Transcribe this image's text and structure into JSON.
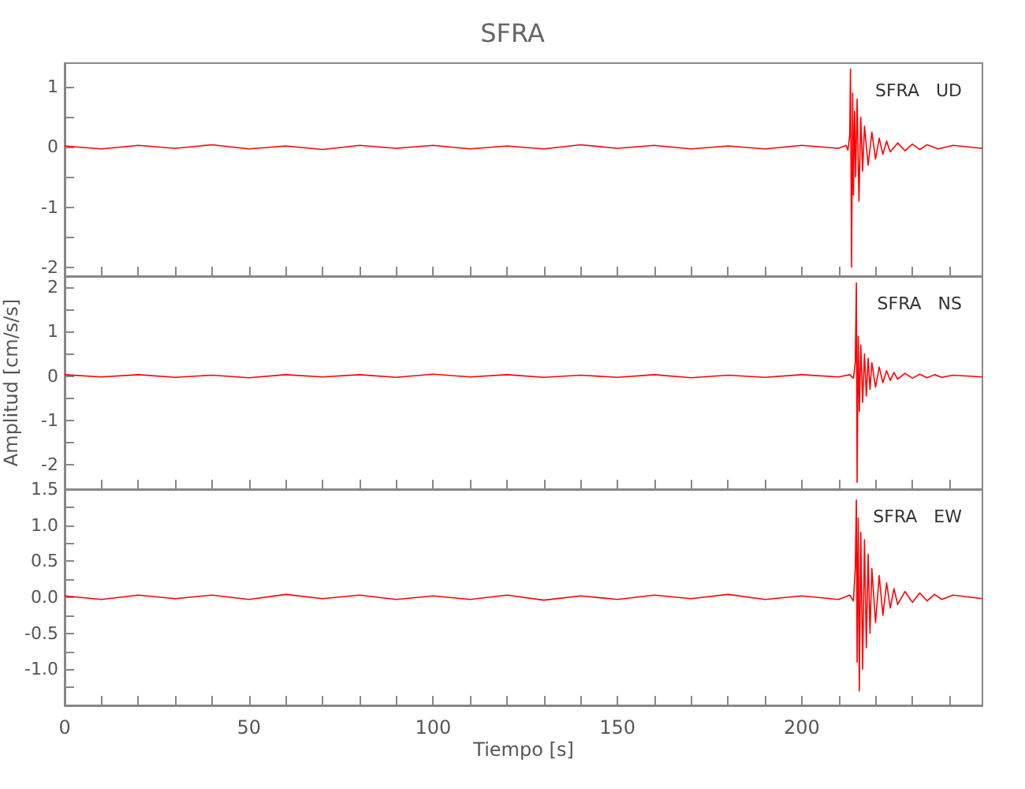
{
  "chart_data": [
    {
      "type": "line",
      "title": "SFRA",
      "annotations": [
        "SFRA   UD"
      ],
      "tick_labels": "y",
      "marker": "none",
      "x": [
        0,
        10,
        20,
        30,
        40,
        50,
        60,
        70,
        80,
        90,
        100,
        110,
        120,
        130,
        140,
        150,
        160,
        170,
        180,
        190,
        200,
        210,
        212,
        212.5,
        213,
        213.2,
        213.5,
        213.8,
        214,
        214.3,
        214.6,
        215,
        215.5,
        216,
        216.5,
        217,
        218,
        219,
        220,
        221,
        222,
        223,
        224,
        226,
        228,
        230,
        232,
        234,
        237,
        241,
        249
      ],
      "series": [
        {
          "color": "#ff0000",
          "values": [
            0.02,
            -0.03,
            0.03,
            -0.02,
            0.04,
            -0.03,
            0.02,
            -0.04,
            0.03,
            -0.02,
            0.03,
            -0.03,
            0.02,
            -0.03,
            0.04,
            -0.02,
            0.03,
            -0.03,
            0.02,
            -0.03,
            0.03,
            -0.02,
            0.03,
            -0.05,
            0.2,
            1.3,
            -2.0,
            0.9,
            -0.8,
            0.6,
            -0.5,
            0.8,
            -0.9,
            0.5,
            -0.4,
            0.35,
            -0.3,
            0.25,
            -0.2,
            0.15,
            -0.12,
            0.1,
            -0.08,
            0.07,
            -0.06,
            0.05,
            -0.04,
            0.04,
            -0.03,
            0.03,
            -0.02
          ]
        }
      ],
      "xlim": [
        0,
        249
      ],
      "xticks": [
        0,
        {
          "value": 10,
          "label": null
        },
        {
          "value": 20,
          "label": null
        },
        {
          "value": 30,
          "label": null
        },
        {
          "value": 40,
          "label": null
        },
        50,
        {
          "value": 60,
          "label": null
        },
        {
          "value": 70,
          "label": null
        },
        {
          "value": 80,
          "label": null
        },
        {
          "value": 90,
          "label": null
        },
        100,
        {
          "value": 110,
          "label": null
        },
        {
          "value": 120,
          "label": null
        },
        {
          "value": 130,
          "label": null
        },
        {
          "value": 140,
          "label": null
        },
        150,
        {
          "value": 160,
          "label": null
        },
        {
          "value": 170,
          "label": null
        },
        {
          "value": 180,
          "label": null
        },
        {
          "value": 190,
          "label": null
        },
        200,
        {
          "value": 210,
          "label": null
        },
        {
          "value": 220,
          "label": null
        },
        {
          "value": 230,
          "label": null
        },
        {
          "value": 240,
          "label": null
        }
      ],
      "ylim": [
        -2.15,
        1.4
      ],
      "yticks": [
        -2,
        {
          "value": -1.5,
          "label": null
        },
        -1,
        {
          "value": -0.5,
          "label": null
        },
        0,
        {
          "value": 0.5,
          "label": null
        },
        1
      ]
    },
    {
      "type": "line",
      "ylabel": "Amplitud [cm/s/s]",
      "annotations": [
        "SFRA   NS"
      ],
      "tick_labels": "y",
      "marker": "none",
      "x": [
        0,
        10,
        20,
        30,
        40,
        50,
        60,
        70,
        80,
        90,
        100,
        110,
        120,
        130,
        140,
        150,
        160,
        170,
        180,
        190,
        200,
        210,
        213,
        214,
        214.5,
        214.8,
        215,
        215.3,
        215.6,
        216,
        216.5,
        217,
        217.5,
        218,
        218.5,
        219,
        220,
        221,
        222,
        223,
        224,
        225,
        226,
        228,
        230,
        232,
        234,
        236,
        238,
        241,
        249
      ],
      "series": [
        {
          "color": "#ff0000",
          "values": [
            0.03,
            -0.02,
            0.03,
            -0.03,
            0.02,
            -0.04,
            0.03,
            -0.02,
            0.03,
            -0.03,
            0.04,
            -0.02,
            0.03,
            -0.03,
            0.02,
            -0.03,
            0.03,
            -0.04,
            0.02,
            -0.03,
            0.03,
            -0.02,
            0.03,
            -0.05,
            0.3,
            2.1,
            -2.4,
            0.9,
            -0.8,
            0.7,
            -0.6,
            0.5,
            -0.45,
            0.4,
            -0.3,
            0.3,
            -0.25,
            0.2,
            -0.15,
            0.12,
            -0.1,
            0.08,
            -0.07,
            0.06,
            -0.05,
            0.04,
            -0.04,
            0.03,
            -0.03,
            0.02,
            -0.02
          ]
        }
      ],
      "xlim": [
        0,
        249
      ],
      "xticks": [
        0,
        {
          "value": 10,
          "label": null
        },
        {
          "value": 20,
          "label": null
        },
        {
          "value": 30,
          "label": null
        },
        {
          "value": 40,
          "label": null
        },
        50,
        {
          "value": 60,
          "label": null
        },
        {
          "value": 70,
          "label": null
        },
        {
          "value": 80,
          "label": null
        },
        {
          "value": 90,
          "label": null
        },
        100,
        {
          "value": 110,
          "label": null
        },
        {
          "value": 120,
          "label": null
        },
        {
          "value": 130,
          "label": null
        },
        {
          "value": 140,
          "label": null
        },
        150,
        {
          "value": 160,
          "label": null
        },
        {
          "value": 170,
          "label": null
        },
        {
          "value": 180,
          "label": null
        },
        {
          "value": 190,
          "label": null
        },
        200,
        {
          "value": 210,
          "label": null
        },
        {
          "value": 220,
          "label": null
        },
        {
          "value": 230,
          "label": null
        },
        {
          "value": 240,
          "label": null
        }
      ],
      "ylim": [
        -2.55,
        2.25
      ],
      "yticks": [
        -2,
        {
          "value": -1.5,
          "label": null
        },
        -1,
        {
          "value": -0.5,
          "label": null
        },
        0,
        {
          "value": 0.5,
          "label": null
        },
        1,
        {
          "value": 1.5,
          "label": null
        },
        2
      ]
    },
    {
      "type": "line",
      "xlabel": "Tiempo [s]",
      "annotations": [
        "SFRA   EW"
      ],
      "marker": "none",
      "x": [
        0,
        10,
        20,
        30,
        40,
        50,
        60,
        70,
        80,
        90,
        100,
        110,
        120,
        130,
        140,
        150,
        160,
        170,
        180,
        190,
        200,
        210,
        213,
        214,
        214.5,
        214.8,
        215,
        215.3,
        215.6,
        216,
        216.5,
        217,
        217.5,
        218,
        218.5,
        219,
        220,
        221,
        222,
        223,
        224,
        225,
        226,
        228,
        230,
        232,
        234,
        236,
        238,
        241,
        249
      ],
      "series": [
        {
          "color": "#ff0000",
          "values": [
            0.02,
            -0.03,
            0.03,
            -0.02,
            0.03,
            -0.03,
            0.04,
            -0.02,
            0.03,
            -0.03,
            0.02,
            -0.03,
            0.03,
            -0.04,
            0.02,
            -0.03,
            0.03,
            -0.02,
            0.04,
            -0.03,
            0.02,
            -0.03,
            0.03,
            -0.05,
            0.4,
            1.35,
            -0.9,
            1.1,
            -1.3,
            0.9,
            -1.0,
            0.8,
            -0.7,
            0.6,
            -0.5,
            0.4,
            -0.35,
            0.3,
            -0.25,
            0.2,
            -0.15,
            0.12,
            -0.1,
            0.08,
            -0.07,
            0.06,
            -0.05,
            0.04,
            -0.03,
            0.03,
            -0.02
          ]
        }
      ],
      "xlim": [
        0,
        249
      ],
      "xticks": [
        0,
        {
          "value": 10,
          "label": null
        },
        {
          "value": 20,
          "label": null
        },
        {
          "value": 30,
          "label": null
        },
        {
          "value": 40,
          "label": null
        },
        50,
        {
          "value": 60,
          "label": null
        },
        {
          "value": 70,
          "label": null
        },
        {
          "value": 80,
          "label": null
        },
        {
          "value": 90,
          "label": null
        },
        100,
        {
          "value": 110,
          "label": null
        },
        {
          "value": 120,
          "label": null
        },
        {
          "value": 130,
          "label": null
        },
        {
          "value": 140,
          "label": null
        },
        150,
        {
          "value": 160,
          "label": null
        },
        {
          "value": 170,
          "label": null
        },
        {
          "value": 180,
          "label": null
        },
        {
          "value": 190,
          "label": null
        },
        200,
        {
          "value": 210,
          "label": null
        },
        {
          "value": 220,
          "label": null
        },
        {
          "value": 230,
          "label": null
        },
        {
          "value": 240,
          "label": null
        }
      ],
      "ylim": [
        -1.5,
        1.5
      ],
      "yticks": [
        {
          "value": -1.5,
          "label": null
        },
        {
          "value": -1.25,
          "label": null
        },
        {
          "value": -1,
          "label": "-1.0"
        },
        {
          "value": -0.75,
          "label": null
        },
        -0.5,
        {
          "value": -0.25,
          "label": null
        },
        {
          "value": 0,
          "label": "0.0"
        },
        {
          "value": 0.25,
          "label": null
        },
        0.5,
        {
          "value": 0.75,
          "label": null
        },
        {
          "value": 1,
          "label": "1.0"
        },
        {
          "value": 1.25,
          "label": null
        },
        1.5
      ]
    }
  ]
}
